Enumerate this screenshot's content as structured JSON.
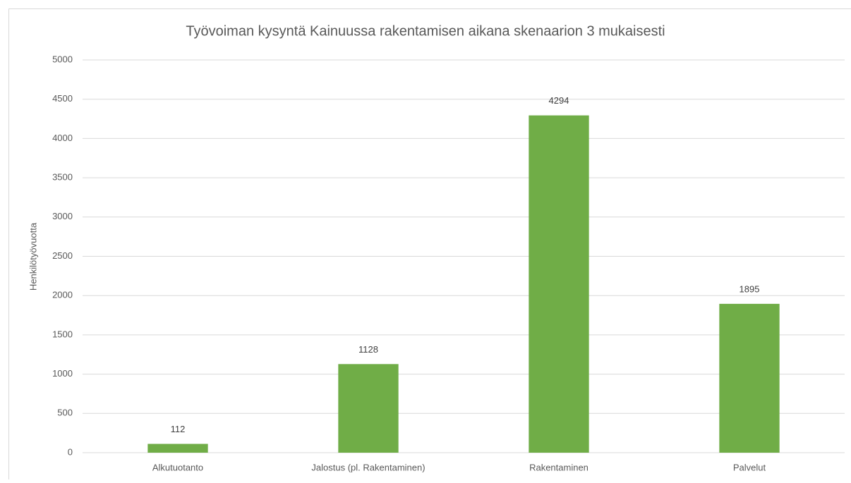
{
  "chart_data": {
    "type": "bar",
    "title": "Työvoiman kysyntä Kainuussa rakentamisen aikana skenaarion 3 mukaisesti",
    "y_axis_label": "Henkilötyövuotta",
    "categories": [
      "Alkutuotanto",
      "Jalostus (pl. Rakentaminen)",
      "Rakentaminen",
      "Palvelut"
    ],
    "values": [
      112,
      1128,
      4294,
      1895
    ],
    "color": "#70ad47",
    "ylim": [
      0,
      5000
    ],
    "yticks": [
      0,
      500,
      1000,
      1500,
      2000,
      2500,
      3000,
      3500,
      4000,
      4500,
      5000
    ],
    "grid": true,
    "data_labels": true
  }
}
